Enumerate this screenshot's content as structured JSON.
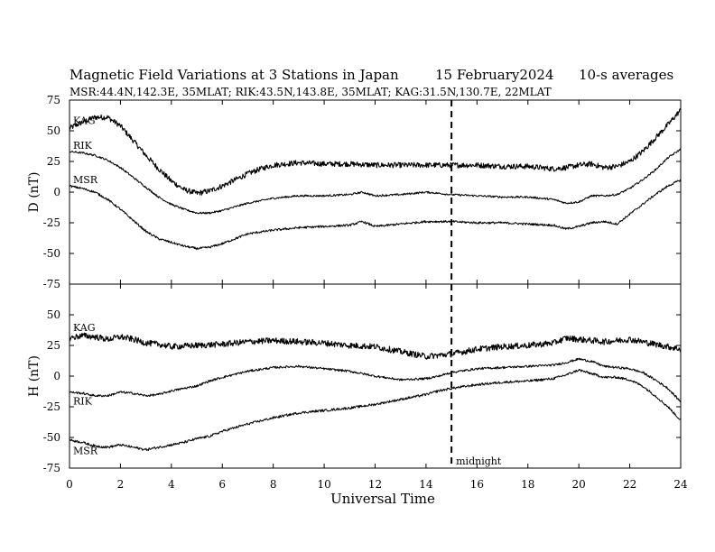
{
  "chart_data": {
    "type": "line",
    "title": "Magnetic Field Variations at 3 Stations in Japan",
    "date": "15 February2024",
    "averaging": "10-s averages",
    "subtitle": "MSR:44.4N,142.3E, 35MLAT;  RIK:43.5N,143.8E, 35MLAT;  KAG:31.5N,130.7E, 22MLAT",
    "xlabel": "Universal Time",
    "xlim": [
      0,
      24
    ],
    "x_ticks": [
      0,
      2,
      4,
      6,
      8,
      10,
      12,
      14,
      16,
      18,
      20,
      22,
      24
    ],
    "x_tick_labels": [
      "0",
      "2",
      "4",
      "6",
      "8",
      "10",
      "12",
      "14",
      "16",
      "18",
      "20",
      "22",
      "24"
    ],
    "marker": {
      "x": 15,
      "label": "midnight"
    },
    "panels": [
      {
        "ylabel": "D (nT)",
        "ylim": [
          -75,
          75
        ],
        "y_ticks": [
          75,
          50,
          25,
          0,
          -25,
          -50,
          -75
        ],
        "y_tick_labels": [
          "75",
          "50",
          "25",
          "0",
          "-25",
          "-50",
          "-75"
        ],
        "series": [
          {
            "name": "KAG",
            "noise": 2.2,
            "x": [
              0,
              0.5,
              1,
              1.5,
              2,
              2.5,
              3,
              3.5,
              4,
              4.5,
              5,
              5.5,
              6,
              6.5,
              7,
              7.5,
              8,
              8.5,
              9,
              10,
              11,
              12,
              13,
              14,
              15,
              16,
              17,
              18,
              19,
              19.5,
              20,
              20.5,
              21,
              21.5,
              22,
              22.5,
              23,
              23.5,
              24
            ],
            "values": [
              52,
              57,
              61,
              61,
              54,
              42,
              30,
              19,
              9,
              2,
              -1,
              1,
              5,
              10,
              15,
              19,
              22,
              23,
              24,
              23,
              23,
              22,
              22,
              22,
              22,
              22,
              21,
              21,
              19,
              20,
              22,
              23,
              20,
              21,
              25,
              33,
              44,
              55,
              67
            ]
          },
          {
            "name": "RIK",
            "noise": 0.8,
            "x": [
              0,
              0.5,
              1,
              1.5,
              2,
              2.5,
              3,
              3.5,
              4,
              4.5,
              5,
              5.5,
              6,
              7,
              8,
              9,
              10,
              11,
              11.5,
              12,
              13,
              14,
              15,
              16,
              17,
              18,
              19,
              19.5,
              20,
              20.5,
              21,
              21.5,
              22,
              22.5,
              23,
              23.5,
              24
            ],
            "values": [
              33,
              32,
              30,
              26,
              20,
              12,
              4,
              -4,
              -10,
              -14,
              -17,
              -17,
              -15,
              -9,
              -5,
              -3,
              -3,
              -2,
              0,
              -3,
              -2,
              0,
              -2,
              -3,
              -4,
              -4,
              -6,
              -9,
              -8,
              -3,
              -3,
              -2,
              3,
              10,
              18,
              28,
              35
            ]
          },
          {
            "name": "MSR",
            "noise": 0.9,
            "x": [
              0,
              0.5,
              1,
              1.5,
              2,
              2.5,
              3,
              3.5,
              4,
              4.5,
              5,
              5.5,
              6,
              6.5,
              7,
              8,
              9,
              10,
              11,
              11.5,
              12,
              13,
              14,
              15,
              16,
              17,
              18,
              19,
              19.5,
              20,
              20.5,
              21,
              21.5,
              22,
              22.5,
              23,
              23.5,
              24
            ],
            "values": [
              5,
              3,
              0,
              -6,
              -14,
              -23,
              -32,
              -38,
              -41,
              -44,
              -46,
              -45,
              -42,
              -38,
              -34,
              -31,
              -29,
              -28,
              -27,
              -24,
              -28,
              -26,
              -24,
              -24,
              -25,
              -25,
              -26,
              -27,
              -30,
              -28,
              -25,
              -24,
              -26,
              -18,
              -10,
              -2,
              5,
              10
            ]
          }
        ]
      },
      {
        "ylabel": "H (nT)",
        "ylim": [
          -75,
          75
        ],
        "y_ticks": [
          75,
          50,
          25,
          0,
          -25,
          -50,
          -75
        ],
        "y_tick_labels": [
          "",
          "50",
          "25",
          "0",
          "-25",
          "-50",
          "-75"
        ],
        "series": [
          {
            "name": "KAG",
            "noise": 2.5,
            "x": [
              0,
              0.5,
              1,
              1.5,
              2,
              2.5,
              3,
              3.5,
              4,
              5,
              6,
              7,
              8,
              9,
              10,
              11,
              12,
              13,
              14,
              15,
              16,
              17,
              18,
              19,
              19.5,
              20,
              21,
              22,
              23,
              24
            ],
            "values": [
              31,
              33,
              32,
              30,
              32,
              30,
              27,
              26,
              24,
              25,
              26,
              28,
              29,
              28,
              27,
              25,
              24,
              20,
              16,
              18,
              22,
              24,
              25,
              27,
              31,
              30,
              28,
              30,
              26,
              22
            ]
          },
          {
            "name": "RIK",
            "noise": 0.9,
            "x": [
              0,
              0.5,
              1,
              1.5,
              2,
              2.5,
              3,
              3.5,
              4,
              4.5,
              5,
              5.5,
              6,
              7,
              8,
              9,
              10,
              11,
              12,
              13,
              14,
              14.5,
              15,
              16,
              17,
              18,
              19,
              19.5,
              20,
              20.5,
              21,
              21.5,
              22,
              22.5,
              23,
              23.5,
              24
            ],
            "values": [
              -13,
              -14,
              -16,
              -16,
              -13,
              -14,
              -16,
              -15,
              -12,
              -10,
              -8,
              -4,
              -1,
              4,
              7,
              8,
              6,
              4,
              0,
              -3,
              -2,
              0,
              3,
              6,
              7,
              8,
              9,
              11,
              14,
              12,
              8,
              7,
              6,
              3,
              -3,
              -10,
              -21
            ]
          },
          {
            "name": "MSR",
            "noise": 1.0,
            "x": [
              0,
              0.5,
              1,
              1.5,
              2,
              2.5,
              3,
              3.5,
              4,
              4.5,
              5,
              5.5,
              6,
              7,
              8,
              9,
              10,
              11,
              12,
              13,
              14,
              14.5,
              15,
              16,
              17,
              18,
              19,
              19.5,
              20,
              20.5,
              21,
              21.5,
              22,
              22.5,
              23,
              23.5,
              24
            ],
            "values": [
              -52,
              -54,
              -57,
              -58,
              -56,
              -58,
              -60,
              -58,
              -56,
              -54,
              -51,
              -49,
              -45,
              -39,
              -34,
              -30,
              -28,
              -26,
              -23,
              -19,
              -15,
              -12,
              -10,
              -7,
              -5,
              -4,
              -2,
              1,
              5,
              2,
              -1,
              -1,
              -3,
              -8,
              -16,
              -25,
              -36
            ]
          }
        ]
      }
    ]
  }
}
